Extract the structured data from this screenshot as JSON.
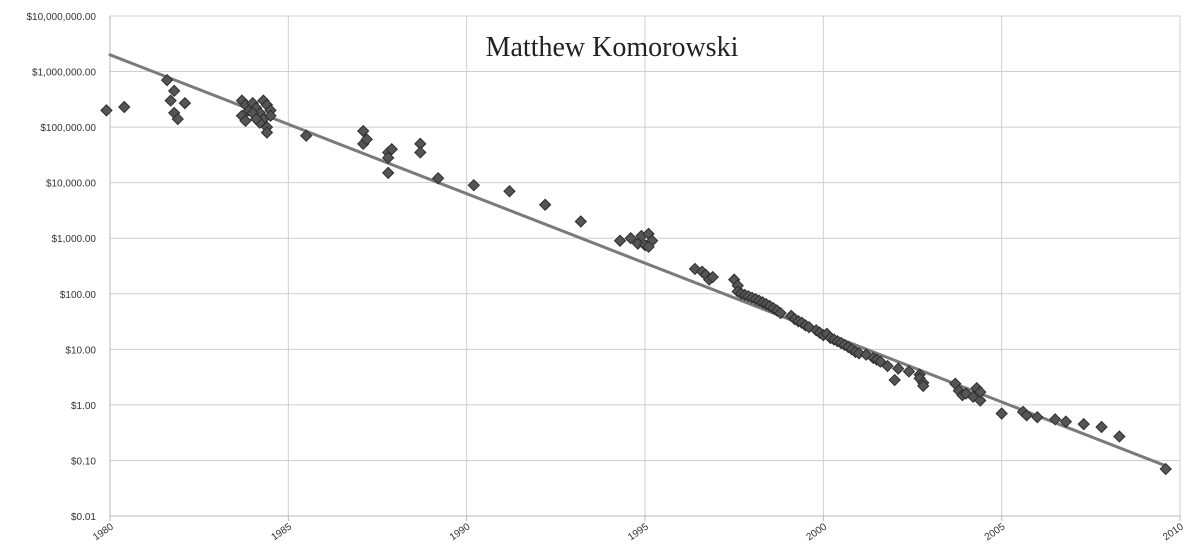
{
  "chart_data": {
    "type": "scatter",
    "title": "Matthew Komorowski",
    "xlabel": "",
    "ylabel": "",
    "x_scale": "linear",
    "y_scale": "log",
    "xlim": [
      1980,
      2010
    ],
    "ylim": [
      0.01,
      10000000
    ],
    "grid": true,
    "x_ticks": [
      1980,
      1985,
      1990,
      1995,
      2000,
      2005,
      2010
    ],
    "x_tick_labels": [
      "1980",
      "1985",
      "1990",
      "1995",
      "2000",
      "2005",
      "2010"
    ],
    "y_ticks": [
      0.01,
      0.1,
      1,
      10,
      100,
      1000,
      10000,
      100000,
      1000000,
      10000000
    ],
    "y_tick_labels": [
      "$0.01",
      "$0.10",
      "$1.00",
      "$10.00",
      "$100.00",
      "$1,000.00",
      "$10,000.00",
      "$100,000.00",
      "$1,000,000.00",
      "$10,000,000.00"
    ],
    "trendline": {
      "x": [
        1980,
        2009.6
      ],
      "y": [
        2000000,
        0.08
      ]
    },
    "colors": {
      "marker": "#555555",
      "marker_edge": "#2e2e2e",
      "trend": "#7a7a7a",
      "grid": "#cfcfcf"
    },
    "series": [
      {
        "points": [
          [
            1979.9,
            200000
          ],
          [
            1980.4,
            230000
          ],
          [
            1981.6,
            700000
          ],
          [
            1981.8,
            450000
          ],
          [
            1981.7,
            300000
          ],
          [
            1981.8,
            180000
          ],
          [
            1981.9,
            140000
          ],
          [
            1982.1,
            270000
          ],
          [
            1983.7,
            300000
          ],
          [
            1983.8,
            250000
          ],
          [
            1983.9,
            200000
          ],
          [
            1983.7,
            160000
          ],
          [
            1983.8,
            130000
          ],
          [
            1984.0,
            270000
          ],
          [
            1984.1,
            220000
          ],
          [
            1984.2,
            180000
          ],
          [
            1984.3,
            140000
          ],
          [
            1984.4,
            100000
          ],
          [
            1984.3,
            300000
          ],
          [
            1984.4,
            250000
          ],
          [
            1984.5,
            200000
          ],
          [
            1984.5,
            160000
          ],
          [
            1984.2,
            120000
          ],
          [
            1984.4,
            80000
          ],
          [
            1984.0,
            180000
          ],
          [
            1984.1,
            140000
          ],
          [
            1985.5,
            70000
          ],
          [
            1987.1,
            85000
          ],
          [
            1987.1,
            50000
          ],
          [
            1987.2,
            60000
          ],
          [
            1987.8,
            35000
          ],
          [
            1987.8,
            28000
          ],
          [
            1987.9,
            40000
          ],
          [
            1987.8,
            15000
          ],
          [
            1988.7,
            50000
          ],
          [
            1988.7,
            35000
          ],
          [
            1989.2,
            12000
          ],
          [
            1990.2,
            9000
          ],
          [
            1991.2,
            7000
          ],
          [
            1992.2,
            4000
          ],
          [
            1993.2,
            2000
          ],
          [
            1994.3,
            900
          ],
          [
            1994.6,
            1000
          ],
          [
            1994.8,
            800
          ],
          [
            1994.9,
            1100
          ],
          [
            1995.0,
            750
          ],
          [
            1995.1,
            1200
          ],
          [
            1995.2,
            900
          ],
          [
            1995.1,
            700
          ],
          [
            1996.4,
            280
          ],
          [
            1996.6,
            250
          ],
          [
            1996.7,
            220
          ],
          [
            1996.8,
            180
          ],
          [
            1996.9,
            200
          ],
          [
            1997.5,
            180
          ],
          [
            1997.6,
            140
          ],
          [
            1997.6,
            110
          ],
          [
            1997.7,
            100
          ],
          [
            1997.8,
            95
          ],
          [
            1997.9,
            90
          ],
          [
            1998.0,
            85
          ],
          [
            1998.1,
            80
          ],
          [
            1998.2,
            75
          ],
          [
            1998.3,
            70
          ],
          [
            1998.4,
            65
          ],
          [
            1998.5,
            60
          ],
          [
            1998.6,
            55
          ],
          [
            1998.7,
            50
          ],
          [
            1998.8,
            45
          ],
          [
            1999.1,
            40
          ],
          [
            1999.2,
            35
          ],
          [
            1999.3,
            32
          ],
          [
            1999.4,
            30
          ],
          [
            1999.5,
            27
          ],
          [
            1999.6,
            25
          ],
          [
            1999.8,
            22
          ],
          [
            1999.9,
            20
          ],
          [
            2000.0,
            18
          ],
          [
            2000.1,
            19
          ],
          [
            2000.2,
            16
          ],
          [
            2000.3,
            15
          ],
          [
            2000.4,
            14
          ],
          [
            2000.5,
            13
          ],
          [
            2000.6,
            12
          ],
          [
            2000.7,
            11
          ],
          [
            2000.8,
            10
          ],
          [
            2000.9,
            9
          ],
          [
            2001.0,
            8.5
          ],
          [
            2001.2,
            8
          ],
          [
            2001.4,
            7
          ],
          [
            2001.5,
            6.5
          ],
          [
            2001.6,
            6
          ],
          [
            2001.8,
            5
          ],
          [
            2002.0,
            2.8
          ],
          [
            2002.1,
            4.5
          ],
          [
            2002.4,
            4
          ],
          [
            2002.7,
            3.5
          ],
          [
            2002.7,
            3
          ],
          [
            2002.8,
            2.5
          ],
          [
            2002.8,
            2.2
          ],
          [
            2003.7,
            2.4
          ],
          [
            2003.8,
            1.8
          ],
          [
            2003.9,
            1.5
          ],
          [
            2004.0,
            1.6
          ],
          [
            2004.2,
            1.4
          ],
          [
            2004.3,
            2
          ],
          [
            2004.4,
            1.2
          ],
          [
            2004.4,
            1.7
          ],
          [
            2005.0,
            0.7
          ],
          [
            2005.6,
            0.75
          ],
          [
            2005.7,
            0.65
          ],
          [
            2006.0,
            0.6
          ],
          [
            2006.5,
            0.55
          ],
          [
            2006.8,
            0.5
          ],
          [
            2007.3,
            0.45
          ],
          [
            2007.8,
            0.4
          ],
          [
            2008.3,
            0.27
          ],
          [
            2009.6,
            0.07
          ]
        ]
      }
    ]
  }
}
